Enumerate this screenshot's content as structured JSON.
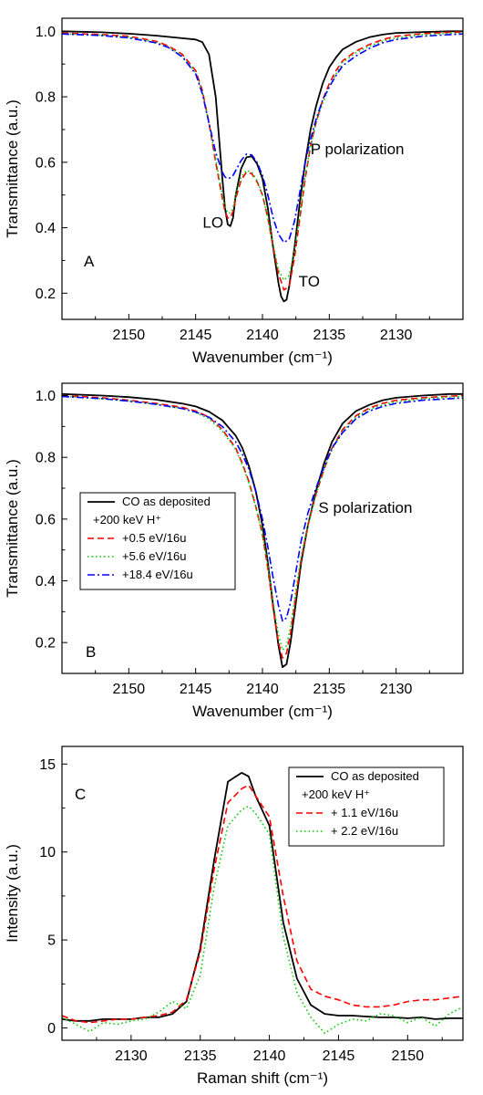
{
  "chart_data": [
    {
      "type": "line",
      "panel_label": "A",
      "xlabel": "Wavenumber (cm⁻¹)",
      "ylabel": "Transmittance (a.u.)",
      "xlim": [
        2155,
        2125
      ],
      "x_reversed": true,
      "ylim": [
        0.12,
        1.04
      ],
      "xticks": [
        2150,
        2145,
        2140,
        2135,
        2130
      ],
      "yticks": [
        0.2,
        0.4,
        0.6,
        0.8,
        1.0
      ],
      "ytick_labels": [
        "0.2",
        "0.4",
        "0.6",
        "0.8",
        "1.0"
      ],
      "annotations": [
        {
          "text": "P polarization",
          "x": 2132.9,
          "y": 0.625
        },
        {
          "text": "LO",
          "x": 2143.7,
          "y": 0.4
        },
        {
          "text": "TO",
          "x": 2136.5,
          "y": 0.22
        }
      ],
      "series": [
        {
          "name": "CO as deposited",
          "color": "#000000",
          "dash": "solid",
          "x": [
            2155,
            2152,
            2150,
            2148,
            2146,
            2145,
            2144.5,
            2144,
            2143.5,
            2143,
            2142.8,
            2142.6,
            2142.4,
            2142.2,
            2142,
            2141.6,
            2141.2,
            2140.8,
            2140.4,
            2140,
            2139.6,
            2139.2,
            2138.8,
            2138.6,
            2138.4,
            2138.2,
            2138,
            2137.6,
            2137.2,
            2136.8,
            2136.4,
            2136,
            2135.5,
            2135,
            2134.5,
            2134,
            2133,
            2132,
            2131,
            2130,
            2128,
            2126,
            2125
          ],
          "y": [
            1.0,
            0.997,
            0.993,
            0.987,
            0.979,
            0.975,
            0.967,
            0.93,
            0.8,
            0.55,
            0.46,
            0.41,
            0.405,
            0.43,
            0.5,
            0.58,
            0.615,
            0.618,
            0.595,
            0.55,
            0.46,
            0.34,
            0.23,
            0.19,
            0.175,
            0.18,
            0.22,
            0.34,
            0.48,
            0.6,
            0.7,
            0.77,
            0.84,
            0.89,
            0.92,
            0.945,
            0.968,
            0.982,
            0.99,
            0.995,
            0.998,
            1.0,
            1.0
          ]
        },
        {
          "name": "+0.5 eV/16u",
          "color": "#ff0000",
          "dash": "dashed",
          "x": [
            2155,
            2152,
            2150,
            2148,
            2147,
            2146,
            2145,
            2144.5,
            2144,
            2143.5,
            2143,
            2142.8,
            2142.6,
            2142.4,
            2142.2,
            2142,
            2141.6,
            2141.2,
            2140.8,
            2140.4,
            2140,
            2139.6,
            2139.2,
            2138.8,
            2138.4,
            2138,
            2137.6,
            2137.2,
            2136.8,
            2136.4,
            2136,
            2135.5,
            2135,
            2134.5,
            2134,
            2133,
            2132,
            2131,
            2130,
            2128,
            2126,
            2125
          ],
          "y": [
            0.995,
            0.99,
            0.985,
            0.97,
            0.955,
            0.93,
            0.88,
            0.82,
            0.72,
            0.6,
            0.49,
            0.45,
            0.43,
            0.43,
            0.45,
            0.49,
            0.545,
            0.57,
            0.565,
            0.54,
            0.5,
            0.43,
            0.34,
            0.26,
            0.21,
            0.22,
            0.31,
            0.43,
            0.55,
            0.65,
            0.72,
            0.79,
            0.84,
            0.88,
            0.91,
            0.94,
            0.96,
            0.975,
            0.985,
            0.993,
            0.997,
            0.998
          ]
        },
        {
          "name": "+5.6 eV/16u",
          "color": "#00cc00",
          "dash": "dotted",
          "x": [
            2155,
            2152,
            2150,
            2148,
            2147,
            2146,
            2145,
            2144.5,
            2144,
            2143.5,
            2143,
            2142.8,
            2142.6,
            2142.4,
            2142.2,
            2142,
            2141.6,
            2141.2,
            2140.8,
            2140.4,
            2140,
            2139.6,
            2139.2,
            2138.8,
            2138.4,
            2138,
            2137.6,
            2137.2,
            2136.8,
            2136.4,
            2136,
            2135.5,
            2135,
            2134.5,
            2134,
            2133,
            2132,
            2131,
            2130,
            2128,
            2126,
            2125
          ],
          "y": [
            0.993,
            0.988,
            0.982,
            0.967,
            0.952,
            0.925,
            0.875,
            0.815,
            0.72,
            0.61,
            0.5,
            0.465,
            0.445,
            0.445,
            0.46,
            0.5,
            0.555,
            0.575,
            0.57,
            0.545,
            0.5,
            0.43,
            0.35,
            0.27,
            0.24,
            0.255,
            0.33,
            0.44,
            0.56,
            0.65,
            0.72,
            0.78,
            0.83,
            0.87,
            0.905,
            0.935,
            0.955,
            0.97,
            0.98,
            0.99,
            0.994,
            0.995
          ]
        },
        {
          "name": "+18.4 eV/16u",
          "color": "#0000ff",
          "dash": "dashdot",
          "x": [
            2155,
            2152,
            2150,
            2148,
            2147,
            2146,
            2145,
            2144.5,
            2144,
            2143.5,
            2143,
            2142.8,
            2142.6,
            2142.4,
            2142.2,
            2142,
            2141.6,
            2141.2,
            2140.8,
            2140.4,
            2140,
            2139.6,
            2139.2,
            2138.8,
            2138.4,
            2138,
            2137.6,
            2137.2,
            2136.8,
            2136.4,
            2136,
            2135.5,
            2135,
            2134.5,
            2134,
            2133,
            2132,
            2131,
            2130,
            2128,
            2126,
            2125
          ],
          "y": [
            0.992,
            0.987,
            0.98,
            0.965,
            0.95,
            0.922,
            0.87,
            0.81,
            0.72,
            0.63,
            0.57,
            0.555,
            0.55,
            0.553,
            0.56,
            0.575,
            0.605,
            0.625,
            0.622,
            0.6,
            0.56,
            0.5,
            0.43,
            0.38,
            0.355,
            0.365,
            0.42,
            0.51,
            0.6,
            0.67,
            0.73,
            0.79,
            0.83,
            0.865,
            0.895,
            0.925,
            0.948,
            0.965,
            0.975,
            0.985,
            0.99,
            0.992
          ]
        }
      ]
    },
    {
      "type": "line",
      "panel_label": "B",
      "xlabel": "Wavenumber (cm⁻¹)",
      "ylabel": "Transmittance (a.u.)",
      "xlim": [
        2155,
        2125
      ],
      "x_reversed": true,
      "ylim": [
        0.1,
        1.04
      ],
      "xticks": [
        2150,
        2145,
        2140,
        2135,
        2130
      ],
      "yticks": [
        0.2,
        0.4,
        0.6,
        0.8,
        1.0
      ],
      "ytick_labels": [
        "0.2",
        "0.4",
        "0.6",
        "0.8",
        "1.0"
      ],
      "annotations": [
        {
          "text": "S polarization",
          "x": 2132.3,
          "y": 0.62
        }
      ],
      "legend": {
        "position": "center-left",
        "entries": [
          "CO as deposited",
          "+200 keV H⁺",
          "+0.5 eV/16u",
          "+5.6 eV/16u",
          "+18.4 eV/16u"
        ]
      },
      "series": [
        {
          "name": "CO as deposited",
          "color": "#000000",
          "dash": "solid",
          "x": [
            2155,
            2152,
            2150,
            2148,
            2146,
            2145,
            2144,
            2143,
            2142,
            2141.5,
            2141,
            2140.5,
            2140,
            2139.6,
            2139.2,
            2138.8,
            2138.5,
            2138.2,
            2137.9,
            2137.5,
            2137.1,
            2136.6,
            2136,
            2135.4,
            2134.8,
            2134,
            2133,
            2132,
            2131,
            2130,
            2128,
            2126,
            2125
          ],
          "y": [
            1.005,
            1.0,
            0.995,
            0.987,
            0.974,
            0.965,
            0.948,
            0.92,
            0.87,
            0.83,
            0.77,
            0.69,
            0.58,
            0.46,
            0.32,
            0.19,
            0.12,
            0.13,
            0.2,
            0.33,
            0.46,
            0.58,
            0.69,
            0.78,
            0.85,
            0.91,
            0.95,
            0.97,
            0.985,
            0.993,
            1.0,
            1.005,
            1.005
          ]
        },
        {
          "name": "+0.5 eV/16u",
          "color": "#ff0000",
          "dash": "dashed",
          "x": [
            2155,
            2152,
            2150,
            2148,
            2146,
            2145,
            2144,
            2143,
            2142,
            2141.5,
            2141,
            2140.5,
            2140,
            2139.6,
            2139.2,
            2138.8,
            2138.5,
            2138.2,
            2137.9,
            2137.5,
            2137.1,
            2136.6,
            2136,
            2135.4,
            2134.8,
            2134,
            2133,
            2132,
            2131,
            2130,
            2128,
            2126,
            2125
          ],
          "y": [
            1.0,
            0.993,
            0.985,
            0.975,
            0.962,
            0.95,
            0.93,
            0.89,
            0.83,
            0.78,
            0.72,
            0.64,
            0.55,
            0.44,
            0.31,
            0.2,
            0.15,
            0.165,
            0.23,
            0.35,
            0.47,
            0.58,
            0.68,
            0.76,
            0.83,
            0.89,
            0.935,
            0.96,
            0.975,
            0.985,
            0.993,
            0.998,
            1.0
          ]
        },
        {
          "name": "+5.6 eV/16u",
          "color": "#00cc00",
          "dash": "dotted",
          "x": [
            2155,
            2152,
            2150,
            2148,
            2146,
            2145,
            2144,
            2143,
            2142,
            2141.5,
            2141,
            2140.5,
            2140,
            2139.6,
            2139.2,
            2138.8,
            2138.5,
            2138.2,
            2137.9,
            2137.5,
            2137.1,
            2136.6,
            2136,
            2135.4,
            2134.8,
            2134,
            2133,
            2132,
            2131,
            2130,
            2128,
            2126,
            2125
          ],
          "y": [
            0.998,
            0.99,
            0.982,
            0.972,
            0.958,
            0.945,
            0.925,
            0.885,
            0.825,
            0.775,
            0.715,
            0.64,
            0.55,
            0.45,
            0.33,
            0.225,
            0.175,
            0.19,
            0.25,
            0.37,
            0.48,
            0.58,
            0.68,
            0.76,
            0.825,
            0.885,
            0.93,
            0.955,
            0.97,
            0.98,
            0.99,
            0.995,
            0.997
          ]
        },
        {
          "name": "+18.4 eV/16u",
          "color": "#0000ff",
          "dash": "dashdot",
          "x": [
            2155,
            2152,
            2150,
            2148,
            2146,
            2145,
            2144,
            2143,
            2142,
            2141.5,
            2141,
            2140.5,
            2140,
            2139.6,
            2139.2,
            2138.8,
            2138.5,
            2138.2,
            2137.9,
            2137.5,
            2137.1,
            2136.6,
            2136,
            2135.4,
            2134.8,
            2134,
            2133,
            2132,
            2131,
            2130,
            2128,
            2126,
            2125
          ],
          "y": [
            0.997,
            0.99,
            0.982,
            0.972,
            0.958,
            0.947,
            0.93,
            0.9,
            0.85,
            0.81,
            0.76,
            0.69,
            0.6,
            0.51,
            0.41,
            0.32,
            0.27,
            0.28,
            0.33,
            0.43,
            0.53,
            0.62,
            0.7,
            0.77,
            0.83,
            0.88,
            0.925,
            0.95,
            0.965,
            0.975,
            0.985,
            0.99,
            0.992
          ]
        }
      ]
    },
    {
      "type": "line",
      "panel_label": "C",
      "xlabel": "Raman shift (cm⁻¹)",
      "ylabel": "Intensity (a.u.)",
      "xlim": [
        2125,
        2154
      ],
      "x_reversed": false,
      "ylim": [
        -0.7,
        16
      ],
      "xticks": [
        2130,
        2135,
        2140,
        2145,
        2150
      ],
      "yticks": [
        0,
        5,
        10,
        15
      ],
      "ytick_labels": [
        "0",
        "5",
        "10",
        "15"
      ],
      "legend": {
        "position": "top-right",
        "entries": [
          "CO as deposited",
          "+200 keV H⁺",
          "+ 1.1 eV/16u",
          "+ 2.2 eV/16u"
        ]
      },
      "series": [
        {
          "name": "CO as deposited",
          "color": "#000000",
          "dash": "solid",
          "x": [
            2125,
            2126,
            2127,
            2128,
            2129,
            2130,
            2131,
            2132,
            2133,
            2134,
            2135,
            2136,
            2137,
            2138,
            2138.5,
            2139,
            2140,
            2141,
            2142,
            2143,
            2144,
            2145,
            2146,
            2147,
            2148,
            2149,
            2150,
            2151,
            2152,
            2153,
            2154
          ],
          "y": [
            0.5,
            0.4,
            0.4,
            0.5,
            0.5,
            0.5,
            0.6,
            0.6,
            0.8,
            1.5,
            4.5,
            9.5,
            14.0,
            14.5,
            14.3,
            13.2,
            11.5,
            6.0,
            2.8,
            1.3,
            0.8,
            0.7,
            0.7,
            0.65,
            0.6,
            0.6,
            0.55,
            0.6,
            0.5,
            0.55,
            0.55
          ]
        },
        {
          "name": "+ 1.1 eV/16u",
          "color": "#ff0000",
          "dash": "dashed",
          "x": [
            2125,
            2126,
            2127,
            2128,
            2129,
            2130,
            2131,
            2132,
            2133,
            2134,
            2135,
            2136,
            2137,
            2138,
            2138.5,
            2139,
            2140,
            2141,
            2142,
            2143,
            2144,
            2145,
            2146,
            2147,
            2148,
            2149,
            2150,
            2151,
            2152,
            2153,
            2154
          ],
          "y": [
            0.7,
            0.4,
            0.3,
            0.4,
            0.5,
            0.5,
            0.6,
            0.7,
            0.9,
            1.6,
            4.3,
            9.0,
            12.8,
            13.6,
            13.8,
            13.2,
            12.0,
            7.5,
            3.8,
            2.2,
            1.8,
            1.6,
            1.3,
            1.2,
            1.2,
            1.3,
            1.5,
            1.6,
            1.6,
            1.7,
            1.8
          ]
        },
        {
          "name": "+ 2.2 eV/16u",
          "color": "#00cc00",
          "dash": "dotted",
          "x": [
            2125,
            2126,
            2127,
            2128,
            2129,
            2130,
            2131,
            2132,
            2133,
            2134,
            2135,
            2136,
            2137,
            2138,
            2138.5,
            2139,
            2140,
            2141,
            2142,
            2143,
            2144,
            2145,
            2146,
            2147,
            2148,
            2149,
            2150,
            2151,
            2152,
            2153,
            2154
          ],
          "y": [
            0.6,
            0.2,
            -0.2,
            0.3,
            0.2,
            0.4,
            0.5,
            0.9,
            1.5,
            1.1,
            3.0,
            8.0,
            11.5,
            12.4,
            12.6,
            12.2,
            11.0,
            5.2,
            2.0,
            0.6,
            -0.3,
            0.2,
            0.5,
            0.4,
            0.8,
            0.7,
            0.3,
            0.6,
            0.1,
            0.8,
            1.2
          ]
        }
      ]
    }
  ]
}
